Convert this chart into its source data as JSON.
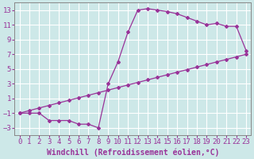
{
  "xlabel": "Windchill (Refroidissement éolien,°C)",
  "bg_color": "#cde8e8",
  "line_color": "#993399",
  "grid_color": "#ffffff",
  "xlim": [
    -0.5,
    23.5
  ],
  "ylim": [
    -4,
    14
  ],
  "xticks": [
    0,
    1,
    2,
    3,
    4,
    5,
    6,
    7,
    8,
    9,
    10,
    11,
    12,
    13,
    14,
    15,
    16,
    17,
    18,
    19,
    20,
    21,
    22,
    23
  ],
  "yticks": [
    -3,
    -1,
    1,
    3,
    5,
    7,
    9,
    11,
    13
  ],
  "line1_x": [
    0,
    1,
    2,
    3,
    4,
    5,
    6,
    7,
    8,
    9,
    10,
    11,
    12,
    13,
    14,
    15,
    16,
    17,
    18,
    19,
    20,
    21,
    22,
    23
  ],
  "line1_y": [
    -1,
    -1,
    -1,
    -2,
    -2,
    -2,
    -2.5,
    -2.5,
    -3,
    3,
    6,
    10,
    13,
    13.2,
    13,
    12.8,
    12.5,
    12,
    11.5,
    11,
    11.2,
    10.8,
    10.8,
    7.5
  ],
  "line2_x": [
    0,
    1,
    2,
    3,
    4,
    5,
    6,
    7,
    8,
    9,
    10,
    11,
    12,
    13,
    14,
    15,
    16,
    17,
    18,
    19,
    20,
    21,
    22,
    23
  ],
  "line2_y": [
    -1,
    -0.65,
    -0.3,
    0.05,
    0.4,
    0.74,
    1.09,
    1.43,
    1.78,
    2.13,
    2.48,
    2.83,
    3.17,
    3.52,
    3.87,
    4.22,
    4.57,
    4.91,
    5.26,
    5.61,
    5.96,
    6.3,
    6.65,
    7.0
  ],
  "font_family": "monospace",
  "tick_fontsize": 6.5,
  "label_fontsize": 7.0
}
